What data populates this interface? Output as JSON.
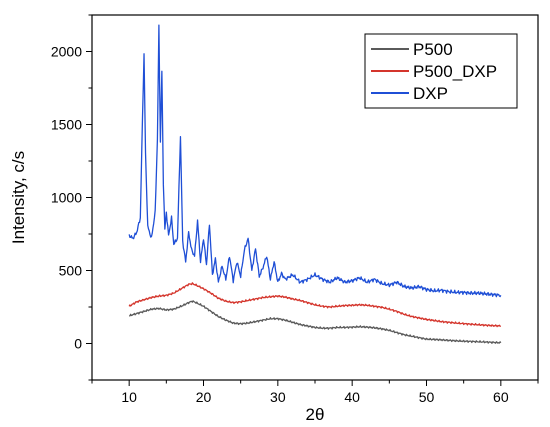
{
  "chart_data": {
    "type": "line",
    "xlabel": "2θ",
    "ylabel": "Intensity, c/s",
    "xlim": [
      5,
      65
    ],
    "ylim": [
      -250,
      2250
    ],
    "xticks": [
      10,
      20,
      30,
      40,
      50,
      60
    ],
    "xtick_labels": [
      "10",
      "20",
      "30",
      "40",
      "50",
      "60"
    ],
    "yticks": [
      0,
      500,
      1000,
      1500,
      2000
    ],
    "ytick_labels": [
      "0",
      "500",
      "1000",
      "1500",
      "2000"
    ],
    "grid": false,
    "legend_position": "top-right",
    "legend": [
      "P500",
      "P500_DXP",
      "DXP"
    ],
    "series": [
      {
        "name": "P500",
        "color": "#5a5a5a",
        "x": [
          10,
          11,
          12,
          13,
          14,
          15,
          16,
          17,
          18,
          18.5,
          19,
          20,
          21,
          22,
          23,
          24,
          25,
          26,
          27,
          28,
          29,
          30,
          31,
          32,
          33,
          34,
          35,
          36,
          37,
          38,
          39,
          40,
          41,
          42,
          43,
          44,
          45,
          46,
          47,
          48,
          49,
          50,
          52,
          54,
          56,
          58,
          60
        ],
        "values": [
          190,
          205,
          220,
          235,
          240,
          230,
          235,
          255,
          280,
          290,
          280,
          255,
          220,
          185,
          160,
          140,
          135,
          140,
          150,
          160,
          170,
          170,
          160,
          145,
          130,
          120,
          110,
          105,
          105,
          110,
          110,
          112,
          115,
          112,
          108,
          100,
          90,
          75,
          60,
          50,
          40,
          30,
          25,
          18,
          14,
          10,
          5
        ]
      },
      {
        "name": "P500_DXP",
        "color": "#d4352c",
        "x": [
          10,
          11,
          12,
          13,
          14,
          15,
          16,
          17,
          18,
          18.5,
          19,
          20,
          21,
          22,
          23,
          24,
          25,
          26,
          27,
          28,
          29,
          30,
          31,
          32,
          33,
          34,
          35,
          36,
          37,
          38,
          39,
          40,
          41,
          42,
          43,
          44,
          45,
          46,
          47,
          48,
          49,
          50,
          52,
          54,
          56,
          58,
          60
        ],
        "values": [
          255,
          285,
          300,
          315,
          325,
          330,
          345,
          375,
          405,
          410,
          400,
          375,
          345,
          310,
          290,
          280,
          285,
          295,
          305,
          315,
          320,
          325,
          318,
          305,
          295,
          280,
          265,
          255,
          250,
          255,
          260,
          262,
          265,
          262,
          255,
          248,
          235,
          220,
          200,
          185,
          175,
          165,
          150,
          140,
          132,
          125,
          120
        ]
      },
      {
        "name": "DXP",
        "color": "#1f4fd6",
        "x": [
          10,
          10.5,
          11,
          11.5,
          11.8,
          12.0,
          12.2,
          12.5,
          13,
          13.5,
          13.8,
          14.0,
          14.2,
          14.4,
          14.6,
          14.8,
          15.0,
          15.3,
          15.7,
          16.0,
          16.5,
          16.9,
          17.2,
          17.6,
          18,
          18.4,
          18.8,
          19.2,
          19.6,
          20,
          20.4,
          20.8,
          21.2,
          21.6,
          22,
          22.5,
          23,
          23.5,
          24,
          24.5,
          25,
          25.5,
          26,
          26.5,
          27,
          27.5,
          28,
          28.5,
          29,
          29.5,
          30,
          30.5,
          31,
          32,
          33,
          34,
          35,
          36,
          37,
          38,
          39,
          40,
          41,
          42,
          43,
          44,
          45,
          46,
          47,
          48,
          49,
          50,
          51,
          52,
          53,
          54,
          55,
          56,
          57,
          58,
          59,
          60
        ],
        "values": [
          740,
          720,
          760,
          860,
          1560,
          1980,
          1300,
          800,
          720,
          900,
          1400,
          2170,
          1380,
          1860,
          1100,
          780,
          900,
          740,
          860,
          680,
          720,
          1420,
          700,
          560,
          760,
          640,
          600,
          840,
          560,
          720,
          540,
          820,
          470,
          580,
          420,
          530,
          440,
          600,
          430,
          560,
          460,
          640,
          720,
          500,
          650,
          460,
          520,
          600,
          440,
          560,
          420,
          480,
          440,
          470,
          420,
          440,
          470,
          440,
          420,
          450,
          420,
          430,
          450,
          420,
          440,
          410,
          400,
          420,
          390,
          380,
          390,
          370,
          360,
          365,
          355,
          350,
          350,
          345,
          345,
          340,
          335,
          330
        ]
      }
    ]
  }
}
